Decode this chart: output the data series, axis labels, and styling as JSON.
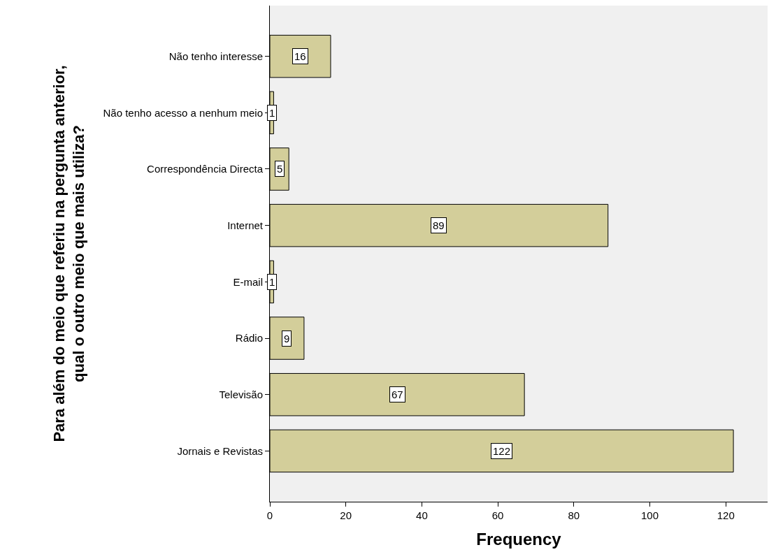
{
  "chart_data": {
    "type": "bar",
    "orientation": "horizontal",
    "categories": [
      "Não tenho interesse",
      "Não tenho acesso a nenhum meio",
      "Correspondência Directa",
      "Internet",
      "E-mail",
      "Rádio",
      "Televisão",
      "Jornais e Revistas"
    ],
    "values": [
      16,
      1,
      5,
      89,
      1,
      9,
      67,
      122
    ],
    "color": "#d3ce9a",
    "xlabel": "Frequency",
    "ylabel": "Para além do meio que referiu na pergunta anterior,\nqual o outro meio que mais utiliza?",
    "xlim": [
      0,
      131
    ],
    "xticks": [
      0,
      20,
      40,
      60,
      80,
      100,
      120
    ],
    "data_labels": true,
    "grid": false
  }
}
